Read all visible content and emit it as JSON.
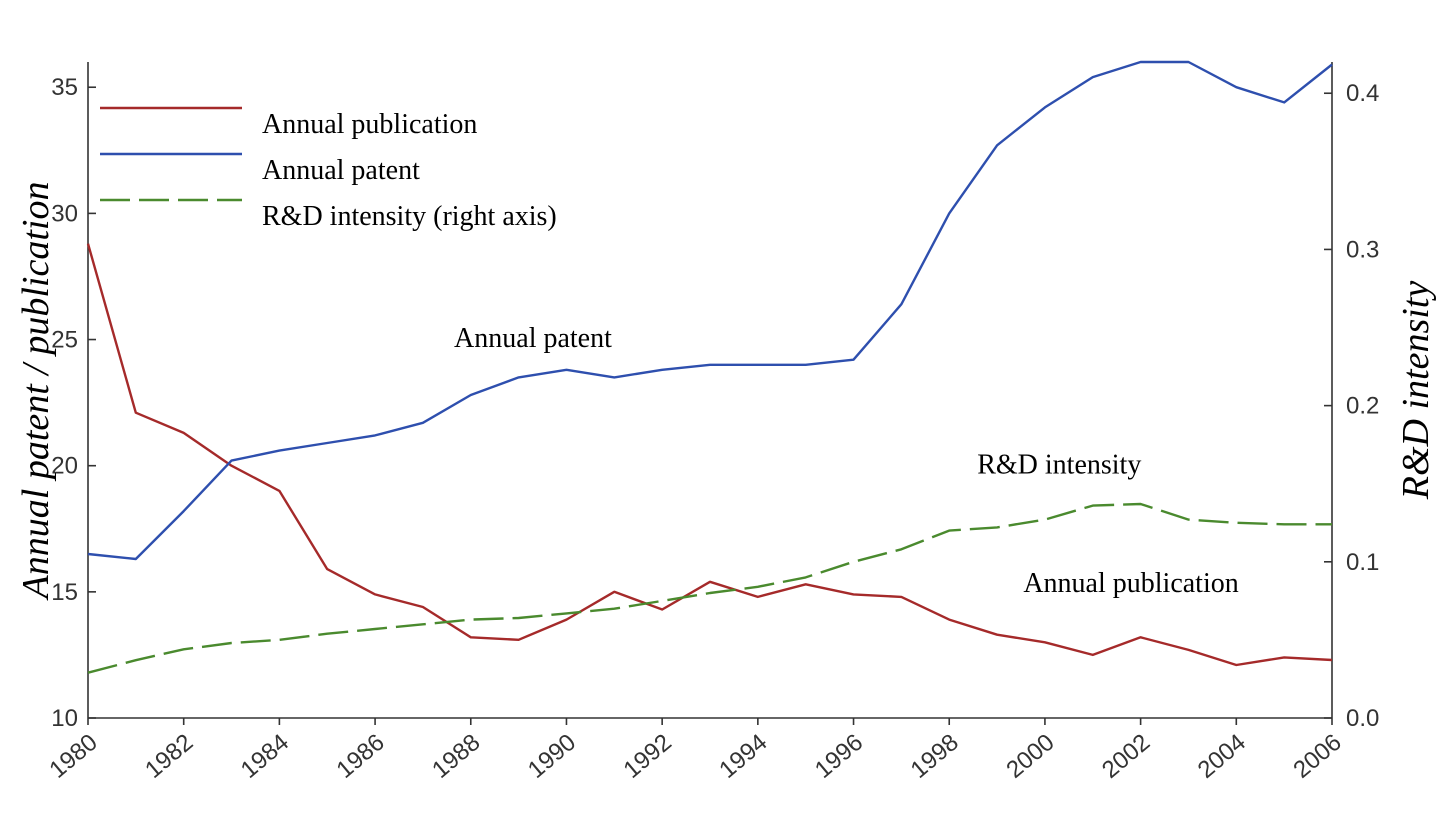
{
  "chart_data": {
    "type": "line",
    "title": "",
    "xlabel": "",
    "ylabel": "Annual patent / publication",
    "y2label": "R&D intensity",
    "xlim": [
      1980,
      2006
    ],
    "ylim": [
      10,
      36
    ],
    "y2lim": [
      0.0,
      0.42
    ],
    "grid": false,
    "legend_position": "top-left",
    "x_ticks": [
      "1980",
      "1982",
      "1984",
      "1986",
      "1988",
      "1990",
      "1992",
      "1994",
      "1996",
      "1998",
      "2000",
      "2002",
      "2004",
      "2006"
    ],
    "y_ticks": [
      "10",
      "15",
      "20",
      "25",
      "30",
      "35"
    ],
    "y2_ticks": [
      "0.0",
      "0.1",
      "0.2",
      "0.3",
      "0.4"
    ],
    "x": [
      1980,
      1981,
      1982,
      1983,
      1984,
      1985,
      1986,
      1987,
      1988,
      1989,
      1990,
      1991,
      1992,
      1993,
      1994,
      1995,
      1996,
      1997,
      1998,
      1999,
      2000,
      2001,
      2002,
      2003,
      2004,
      2005,
      2006
    ],
    "series": [
      {
        "name": "Annual publication",
        "axis": "left",
        "color": "#a52a2a",
        "style": "solid",
        "values": [
          28.8,
          22.1,
          21.3,
          20.0,
          19.0,
          15.9,
          14.9,
          14.4,
          13.2,
          13.1,
          13.9,
          15.0,
          14.3,
          15.4,
          14.8,
          15.3,
          14.9,
          14.8,
          13.9,
          13.3,
          13.0,
          12.5,
          13.2,
          12.7,
          12.1,
          12.4,
          12.3
        ]
      },
      {
        "name": "Annual patent",
        "axis": "left",
        "color": "#2e4fae",
        "style": "solid",
        "values": [
          16.5,
          16.3,
          18.2,
          20.2,
          20.6,
          20.9,
          21.2,
          21.7,
          22.8,
          23.5,
          23.8,
          23.5,
          23.8,
          24.0,
          24.0,
          24.0,
          24.2,
          26.4,
          30.0,
          32.7,
          34.2,
          35.4,
          36.0,
          36.0,
          35.0,
          34.4,
          35.9
        ]
      },
      {
        "name": "R&D intensity (right axis)",
        "axis": "right",
        "color": "#4a8a2e",
        "style": "dashed",
        "values": [
          0.029,
          0.037,
          0.044,
          0.048,
          0.05,
          0.054,
          0.057,
          0.06,
          0.063,
          0.064,
          0.067,
          0.07,
          0.075,
          0.08,
          0.084,
          0.09,
          0.1,
          0.108,
          0.12,
          0.122,
          0.127,
          0.136,
          0.137,
          0.127,
          0.125,
          0.124,
          0.124
        ]
      }
    ],
    "annotations": [
      {
        "text": "Annual patent",
        "x": 1989.3,
        "y": 24.7,
        "axis": "left"
      },
      {
        "text": "R&D intensity",
        "x": 2000.3,
        "y": 19.7,
        "axis": "left"
      },
      {
        "text": "Annual publication",
        "x": 2001.8,
        "y": 15.0,
        "axis": "left"
      }
    ]
  }
}
